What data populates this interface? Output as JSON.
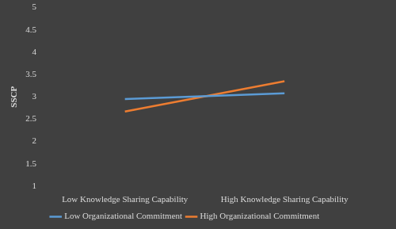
{
  "chart_data": {
    "type": "line",
    "y_label": "SSCP",
    "categories": [
      "Low Knowledge Sharing Capability",
      "High Knowledge Sharing Capability"
    ],
    "series": [
      {
        "name": "Low Organizational Commitment",
        "color": "#5b9bd5",
        "values": [
          2.95,
          3.08
        ]
      },
      {
        "name": "High Organizational Commitment",
        "color": "#ed7d31",
        "values": [
          2.67,
          3.35
        ]
      }
    ],
    "ylim": [
      1,
      5
    ],
    "yticks": [
      1,
      1.5,
      2,
      2.5,
      3,
      3.5,
      4,
      4.5,
      5
    ],
    "grid": false,
    "legend": "bottom",
    "marker": "none"
  }
}
